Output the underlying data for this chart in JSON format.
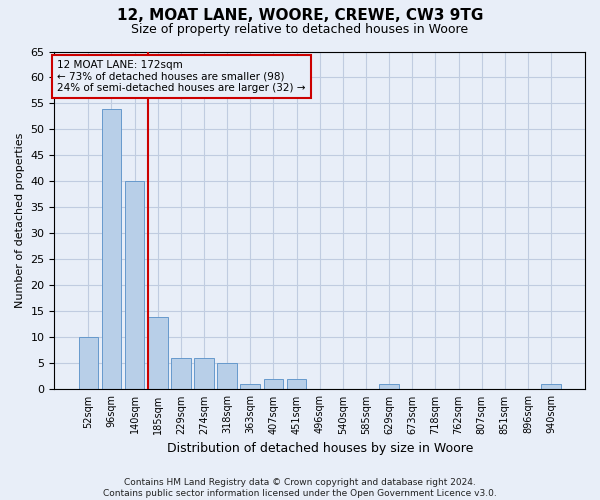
{
  "title1": "12, MOAT LANE, WOORE, CREWE, CW3 9TG",
  "title2": "Size of property relative to detached houses in Woore",
  "xlabel": "Distribution of detached houses by size in Woore",
  "ylabel": "Number of detached properties",
  "categories": [
    "52sqm",
    "96sqm",
    "140sqm",
    "185sqm",
    "229sqm",
    "274sqm",
    "318sqm",
    "363sqm",
    "407sqm",
    "451sqm",
    "496sqm",
    "540sqm",
    "585sqm",
    "629sqm",
    "673sqm",
    "718sqm",
    "762sqm",
    "807sqm",
    "851sqm",
    "896sqm",
    "940sqm"
  ],
  "values": [
    10,
    54,
    40,
    14,
    6,
    6,
    5,
    1,
    2,
    2,
    0,
    0,
    0,
    1,
    0,
    0,
    0,
    0,
    0,
    0,
    1
  ],
  "bar_color": "#b8cfe8",
  "bar_edgecolor": "#6699cc",
  "vline_color": "#cc0000",
  "vline_xindex": 2.57,
  "annotation_line1": "12 MOAT LANE: 172sqm",
  "annotation_line2": "← 73% of detached houses are smaller (98)",
  "annotation_line3": "24% of semi-detached houses are larger (32) →",
  "annotation_box_edgecolor": "#cc0000",
  "annotation_box_facecolor": "#e8eef8",
  "ylim": [
    0,
    65
  ],
  "yticks": [
    0,
    5,
    10,
    15,
    20,
    25,
    30,
    35,
    40,
    45,
    50,
    55,
    60,
    65
  ],
  "footer_line1": "Contains HM Land Registry data © Crown copyright and database right 2024.",
  "footer_line2": "Contains public sector information licensed under the Open Government Licence v3.0.",
  "background_color": "#e8eef8",
  "plot_bg_color": "#e8eef8",
  "grid_color": "#c0cce0"
}
